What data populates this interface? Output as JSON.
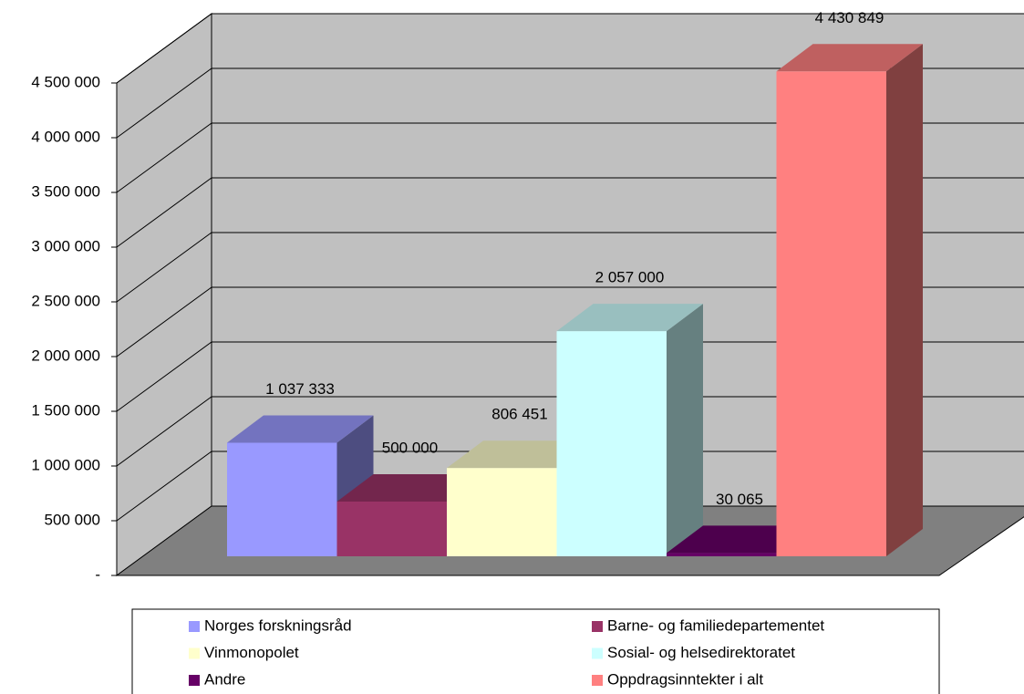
{
  "chart_data": {
    "type": "bar3d",
    "series": [
      {
        "name": "Norges forskningsråd",
        "color": "#9999ff",
        "values": [
          1037333
        ],
        "value_labels": [
          "1 037 333"
        ]
      },
      {
        "name": "Barne- og familiedepartementet",
        "color": "#993366",
        "values": [
          500000
        ],
        "value_labels": [
          "500 000"
        ]
      },
      {
        "name": "Vinmonopolet",
        "color": "#ffffcc",
        "values": [
          806451
        ],
        "value_labels": [
          "806 451"
        ]
      },
      {
        "name": "Sosial- og helsedirektoratet",
        "color": "#ccffff",
        "values": [
          2057000
        ],
        "value_labels": [
          "2 057 000"
        ]
      },
      {
        "name": "Andre",
        "color": "#660066",
        "values": [
          30065
        ],
        "value_labels": [
          "30 065"
        ]
      },
      {
        "name": "Oppdragsinntekter i alt",
        "color": "#ff8080",
        "values": [
          4430849
        ],
        "value_labels": [
          "4 430 849"
        ]
      }
    ],
    "ylim": [
      0,
      4500000
    ],
    "yticks": [
      {
        "value": 0,
        "label": "-"
      },
      {
        "value": 500000,
        "label": "500 000"
      },
      {
        "value": 1000000,
        "label": "1 000 000"
      },
      {
        "value": 1500000,
        "label": "1 500 000"
      },
      {
        "value": 2000000,
        "label": "2 000 000"
      },
      {
        "value": 2500000,
        "label": "2 500 000"
      },
      {
        "value": 3000000,
        "label": "3 000 000"
      },
      {
        "value": 3500000,
        "label": "3 500 000"
      },
      {
        "value": 4000000,
        "label": "4 000 000"
      },
      {
        "value": 4500000,
        "label": "4 500 000"
      }
    ],
    "grid": true
  }
}
